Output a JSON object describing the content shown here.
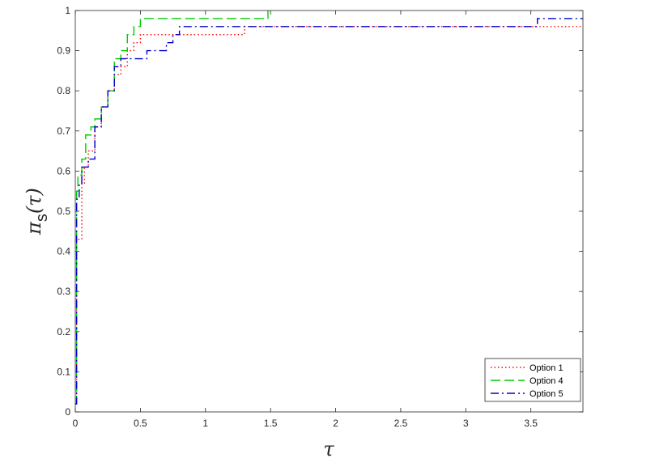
{
  "chart_data": {
    "type": "line",
    "title": "",
    "xlabel": "τ",
    "ylabel": "π",
    "ylabel_subscript": "s",
    "ylabel_suffix": "(τ)",
    "xlim": [
      0,
      3.9
    ],
    "ylim": [
      0,
      1
    ],
    "x_ticks": [
      0,
      0.5,
      1,
      1.5,
      2,
      2.5,
      3,
      3.5
    ],
    "x_tick_labels": [
      "0",
      "0.5",
      "1",
      "1.5",
      "2",
      "2.5",
      "3",
      "3.5"
    ],
    "y_ticks": [
      0,
      0.1,
      0.2,
      0.3,
      0.4,
      0.5,
      0.6,
      0.7,
      0.8,
      0.9,
      1
    ],
    "y_tick_labels": [
      "0",
      "0.1",
      "0.2",
      "0.3",
      "0.4",
      "0.5",
      "0.6",
      "0.7",
      "0.8",
      "0.9",
      "1"
    ],
    "grid": false,
    "legend_position": "bottom-right",
    "series": [
      {
        "name": "Option 1",
        "color": "#ff0000",
        "dash": "dotted",
        "x": [
          0,
          0.01,
          0.02,
          0.05,
          0.07,
          0.1,
          0.15,
          0.2,
          0.25,
          0.3,
          0.35,
          0.4,
          0.45,
          0.5,
          0.55,
          1.3,
          1.3,
          3.9
        ],
        "y": [
          0.02,
          0.43,
          0.43,
          0.57,
          0.61,
          0.65,
          0.71,
          0.76,
          0.8,
          0.84,
          0.86,
          0.9,
          0.92,
          0.94,
          0.94,
          0.94,
          0.96,
          0.96
        ]
      },
      {
        "name": "Option 4",
        "color": "#00cc00",
        "dash": "dashed",
        "x": [
          0,
          0.01,
          0.02,
          0.05,
          0.08,
          0.12,
          0.15,
          0.2,
          0.25,
          0.3,
          0.35,
          0.4,
          0.45,
          0.5,
          1.48,
          1.48
        ],
        "y": [
          0.02,
          0.55,
          0.59,
          0.63,
          0.69,
          0.71,
          0.73,
          0.76,
          0.8,
          0.88,
          0.9,
          0.94,
          0.96,
          0.98,
          0.98,
          1.0
        ]
      },
      {
        "name": "Option 5",
        "color": "#0000cc",
        "dash": "dashdot",
        "x": [
          0,
          0.01,
          0.03,
          0.05,
          0.1,
          0.15,
          0.2,
          0.25,
          0.3,
          0.35,
          0.4,
          0.55,
          0.7,
          0.75,
          0.8,
          3.55,
          3.55,
          3.9
        ],
        "y": [
          0.02,
          0.53,
          0.57,
          0.61,
          0.63,
          0.71,
          0.76,
          0.8,
          0.86,
          0.88,
          0.88,
          0.9,
          0.92,
          0.94,
          0.96,
          0.96,
          0.98,
          0.98
        ]
      }
    ]
  }
}
